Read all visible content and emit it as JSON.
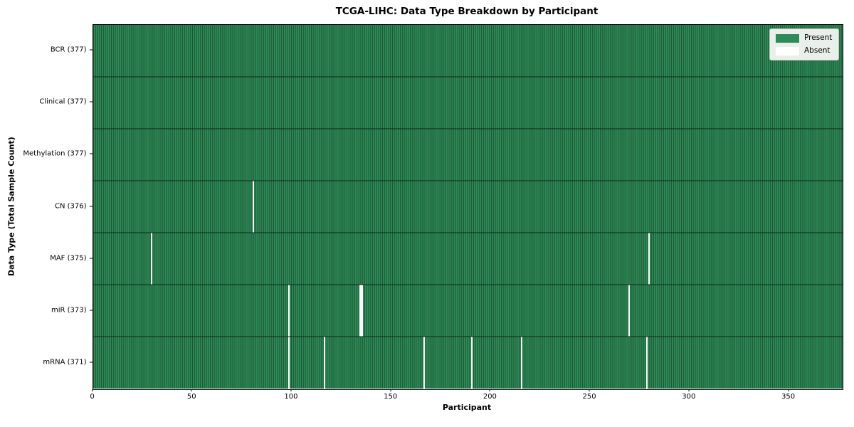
{
  "title": "TCGA-LIHC: Data Type Breakdown by Participant",
  "axes": {
    "xlabel": "Participant",
    "ylabel": "Data Type (Total Sample Count)"
  },
  "legend": {
    "items": [
      {
        "name": "present",
        "label": "Present",
        "color": "#2e8b57"
      },
      {
        "name": "absent",
        "label": "Absent",
        "color": "#ffffff"
      }
    ],
    "position": "upper right"
  },
  "colors": {
    "present": "#2e8b57",
    "absent": "#ffffff",
    "cell_edge": "rgba(0,0,0,0.42)",
    "row_divider": "#122b1e",
    "axis_border": "#000000",
    "legend_bg": "#e9efe9"
  },
  "chart_data": {
    "type": "heatmap",
    "title": "TCGA-LIHC: Data Type Breakdown by Participant",
    "xlabel": "Participant",
    "ylabel": "Data Type (Total Sample Count)",
    "n_participants": 377,
    "x_range": [
      0,
      377
    ],
    "x_ticks": [
      0,
      50,
      100,
      150,
      200,
      250,
      300,
      350
    ],
    "legend_entries": [
      "Present",
      "Absent"
    ],
    "legend_position": "upper right",
    "grid": false,
    "rows": [
      {
        "data_type": "BCR",
        "label": "BCR (377)",
        "present_count": 377,
        "absent_participants": []
      },
      {
        "data_type": "Clinical",
        "label": "Clinical (377)",
        "present_count": 377,
        "absent_participants": []
      },
      {
        "data_type": "Methylation",
        "label": "Methylation (377)",
        "present_count": 377,
        "absent_participants": []
      },
      {
        "data_type": "CN",
        "label": "CN (376)",
        "present_count": 376,
        "absent_participants": [
          80
        ]
      },
      {
        "data_type": "MAF",
        "label": "MAF (375)",
        "present_count": 375,
        "absent_participants": [
          29,
          279
        ]
      },
      {
        "data_type": "miR",
        "label": "miR (373)",
        "present_count": 373,
        "absent_participants": [
          98,
          134,
          135,
          269
        ]
      },
      {
        "data_type": "mRNA",
        "label": "mRNA (371)",
        "present_count": 371,
        "absent_participants": [
          98,
          116,
          166,
          190,
          215,
          278
        ]
      }
    ]
  }
}
